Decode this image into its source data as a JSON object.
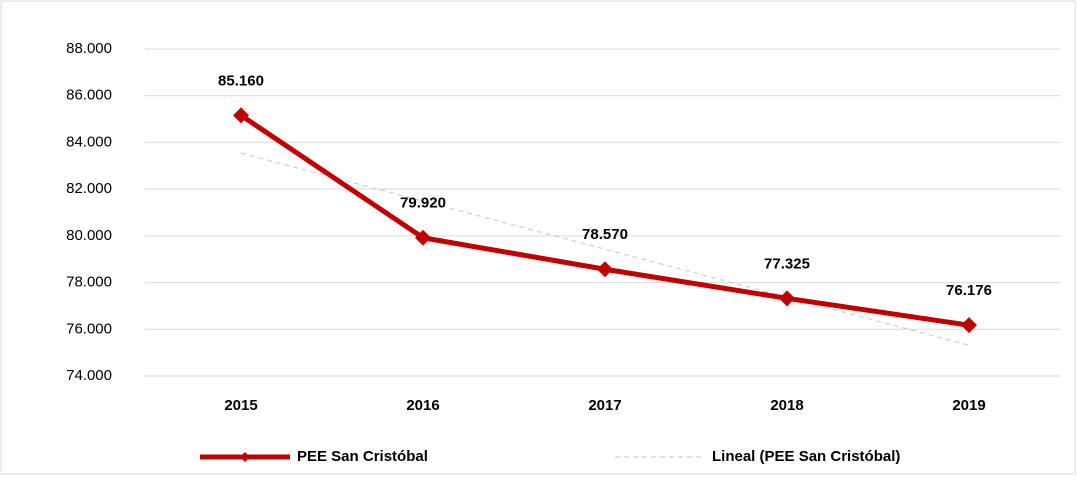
{
  "chart_data": {
    "type": "line",
    "categories": [
      "2015",
      "2016",
      "2017",
      "2018",
      "2019"
    ],
    "series": [
      {
        "name": "PEE San Cristóbal",
        "color": "#c00000",
        "values": [
          85160,
          79920,
          78570,
          77325,
          76176
        ],
        "value_labels": [
          "85.160",
          "79.920",
          "78.570",
          "77.325",
          "76.176"
        ]
      },
      {
        "name": "Lineal (PEE San Cristóbal)",
        "color": "#d0d0d0",
        "trendline": true,
        "values": [
          83543,
          81487,
          79430,
          77374,
          75318
        ]
      }
    ],
    "ylim": [
      74000,
      88000
    ],
    "yticks": [
      {
        "value": 74000,
        "label": "74.000"
      },
      {
        "value": 76000,
        "label": "76.000"
      },
      {
        "value": 78000,
        "label": "78.000"
      },
      {
        "value": 80000,
        "label": "80.000"
      },
      {
        "value": 82000,
        "label": "82.000"
      },
      {
        "value": 84000,
        "label": "84.000"
      },
      {
        "value": 86000,
        "label": "86.000"
      },
      {
        "value": 88000,
        "label": "88.000"
      }
    ],
    "grid": true,
    "legend": "bottom"
  }
}
